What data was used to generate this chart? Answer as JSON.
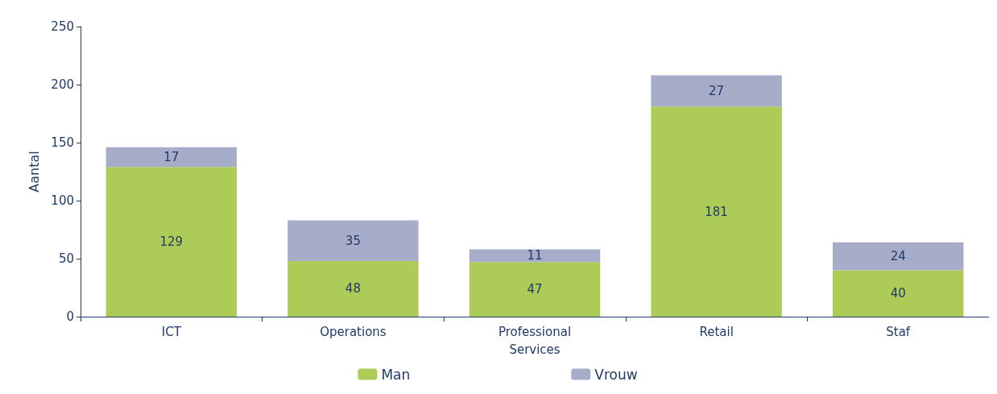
{
  "chart_data": {
    "type": "bar",
    "stacked": true,
    "ylabel": "Aantal",
    "categories": [
      "ICT",
      "Operations",
      "Professional\nServices",
      "Retail",
      "Staf"
    ],
    "series": [
      {
        "name": "Man",
        "color": "#adcb57",
        "values": [
          129,
          48,
          47,
          181,
          40
        ]
      },
      {
        "name": "Vrouw",
        "color": "#a7adc8",
        "values": [
          17,
          35,
          11,
          27,
          24
        ]
      }
    ],
    "ylim": [
      0,
      250
    ],
    "yticks": [
      0,
      50,
      100,
      150,
      200,
      250
    ],
    "data_labels": true,
    "grid": false,
    "legend": "bottom"
  }
}
